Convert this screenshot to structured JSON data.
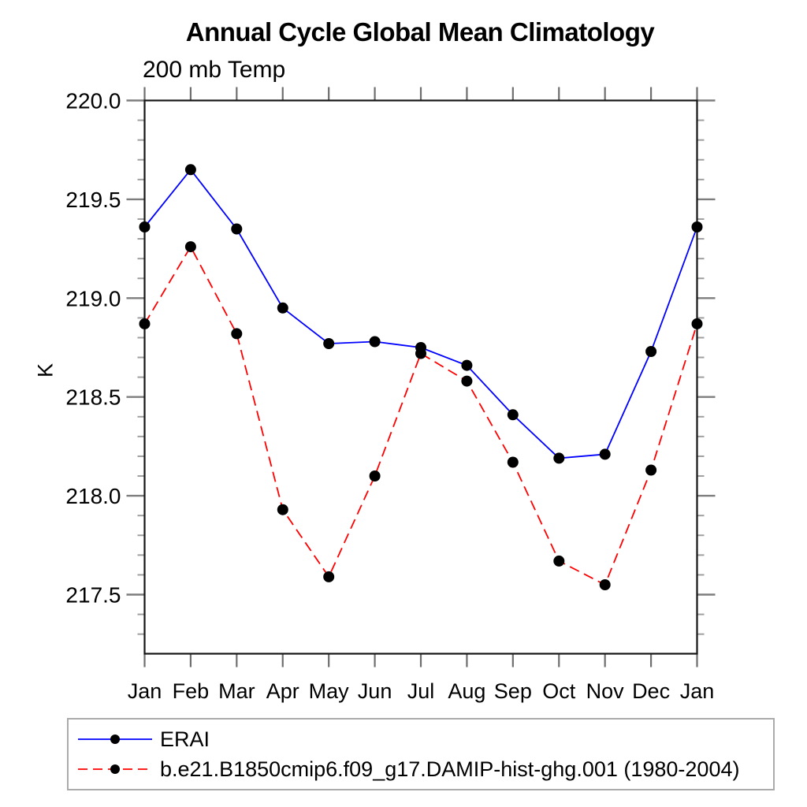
{
  "chart_data": {
    "type": "line",
    "title": "Annual Cycle Global Mean Climatology",
    "subtitle": "200 mb Temp",
    "xlabel": "",
    "ylabel": "K",
    "categories": [
      "Jan",
      "Feb",
      "Mar",
      "Apr",
      "May",
      "Jun",
      "Jul",
      "Aug",
      "Sep",
      "Oct",
      "Nov",
      "Dec",
      "Jan"
    ],
    "series": [
      {
        "name": "ERAI",
        "color": "#0000ff",
        "line_style": "solid",
        "marker": "filled-circle",
        "marker_color": "#000000",
        "values": [
          219.36,
          219.65,
          219.35,
          218.95,
          218.77,
          218.78,
          218.75,
          218.66,
          218.41,
          218.19,
          218.21,
          218.73,
          219.36
        ]
      },
      {
        "name": "b.e21.B1850cmip6.f09_g17.DAMIP-hist-ghg.001 (1980-2004)",
        "color": "#ff0000",
        "line_style": "dashed",
        "marker": "filled-circle",
        "marker_color": "#000000",
        "values": [
          218.87,
          219.26,
          218.82,
          217.93,
          217.59,
          218.1,
          218.72,
          218.58,
          218.17,
          217.67,
          217.55,
          218.13,
          218.87
        ]
      }
    ],
    "ylim": [
      217.2,
      220.0
    ],
    "yticks_major": [
      217.5,
      218.0,
      218.5,
      219.0,
      219.5,
      220.0
    ],
    "ytick_minor_step": 0.1,
    "grid": false,
    "legend_position": "bottom-left"
  }
}
